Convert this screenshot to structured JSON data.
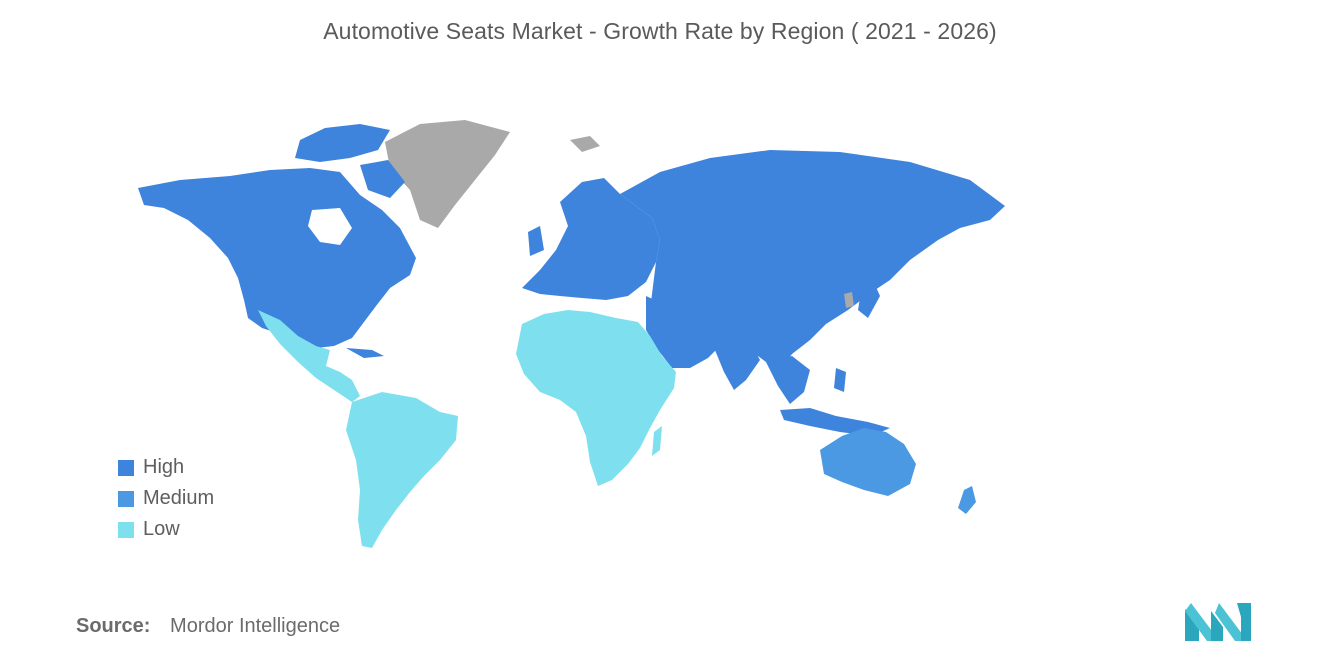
{
  "title": "Automotive Seats Market - Growth Rate by Region ( 2021 - 2026)",
  "legend": [
    {
      "label": "High",
      "color": "#3e83dc"
    },
    {
      "label": "Medium",
      "color": "#4b99e2"
    },
    {
      "label": "Low",
      "color": "#7ee0ee"
    }
  ],
  "no_data_color": "#a9a9a9",
  "source": {
    "label": "Source:",
    "value": "Mordor Intelligence"
  },
  "logo": {
    "name": "mordor-intelligence-logo",
    "color": "#4cc3d4"
  },
  "regions": [
    {
      "name": "North America",
      "level": "High"
    },
    {
      "name": "Europe",
      "level": "High"
    },
    {
      "name": "Asia-Pacific",
      "level": "High"
    },
    {
      "name": "Australia & New Zealand",
      "level": "Medium"
    },
    {
      "name": "South America",
      "level": "Low"
    },
    {
      "name": "Middle East & Africa",
      "level": "Low"
    }
  ]
}
